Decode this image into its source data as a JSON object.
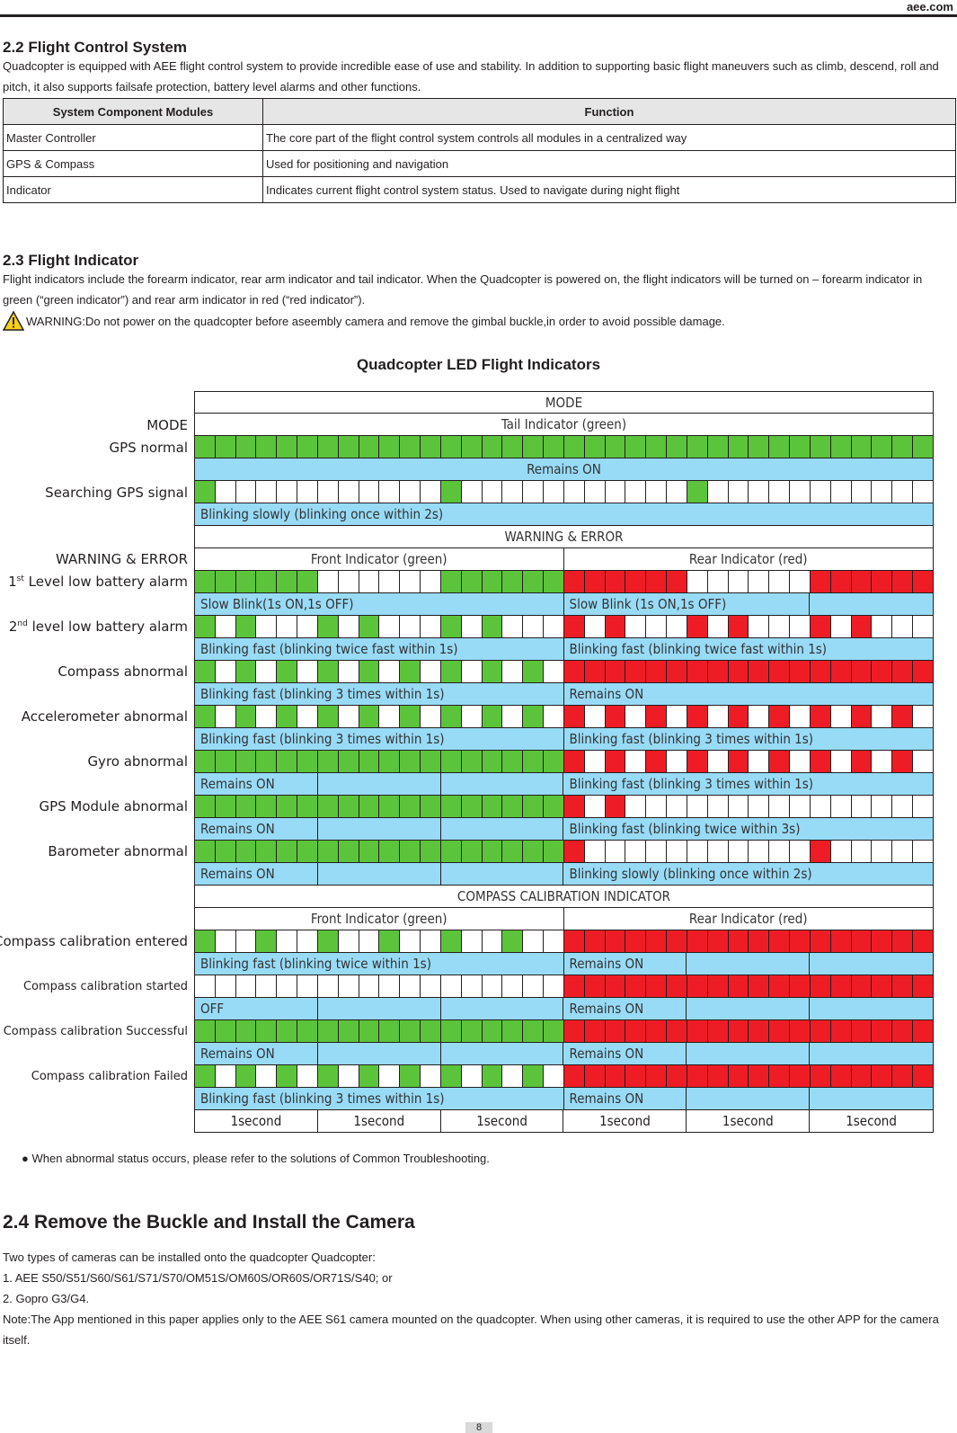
{
  "site": "aee.com",
  "sec22": {
    "title": "2.2  Flight Control System",
    "intro": "Quadcopter is equipped with AEE flight control system to provide incredible ease of use and stability. In addition to supporting basic flight maneuvers such as climb, descend, roll and pitch, it also supports failsafe protection, battery level alarms and other functions.",
    "table": {
      "headers": [
        "System Component Modules",
        "Function"
      ],
      "rows": [
        [
          "Master Controller",
          "The core part of the flight control system controls all modules in a centralized way"
        ],
        [
          "GPS & Compass",
          "Used for positioning and navigation"
        ],
        [
          "Indicator",
          "Indicates current flight control system status. Used to navigate during night flight"
        ]
      ]
    }
  },
  "sec23": {
    "title": "2.3  Flight Indicator",
    "intro": "Flight indicators include the forearm indicator, rear arm indicator and tail indicator. When the Quadcopter is powered on, the flight indicators will be turned on – forearm indicator in green (“green indicator”) and rear arm indicator in red (“red indicator”).",
    "warning": "WARNING:Do not power on the quadcopter before aseembly camera and remove the gimbal buckle,in order to avoid possible damage."
  },
  "chart": {
    "title": "Quadcopter LED Flight Indicators",
    "mode_header": "MODE",
    "tail_header": "Tail Indicator (green)",
    "mode_label": "MODE",
    "gps_normal": "GPS normal",
    "remains_on": "Remains ON",
    "searching_gps": "Searching GPS signal",
    "blink_slow_2s": "Blinking slowly (blinking once within 2s)",
    "warning_header": "WARNING & ERROR",
    "warning_label": "WARNING & ERROR",
    "front_green": "Front Indicator (green)",
    "rear_red": "Rear Indicator (red)",
    "lvl1_sup": "st",
    "lvl1_num": "1",
    "lvl1_text": " Level low battery alarm",
    "slow_blink_front": "Slow Blink(1s ON,1s OFF)",
    "slow_blink_rear": "Slow Blink (1s ON,1s OFF)",
    "lvl2_num": "2",
    "lvl2_sup": "nd",
    "lvl2_text": " level low battery alarm",
    "blink_twice_fast": "Blinking fast (blinking twice fast within 1s)",
    "compass_abnormal": "Compass abnormal",
    "blink_3": "Blinking fast (blinking 3 times within 1s)",
    "accel_abnormal": "Accelerometer abnormal",
    "gyro_abnormal": "Gyro abnormal",
    "gps_module_abnormal": "GPS Module abnormal",
    "blink_twice_3s": "Blinking fast (blinking twice within 3s)",
    "baro_abnormal": "Barometer abnormal",
    "calib_header": "COMPASS CALIBRATION INDICATOR",
    "calib_entered": "Compass calibration entered",
    "blink_twice_1s": "Blinking fast (blinking twice within 1s)",
    "calib_started": "Compass calibration started",
    "off": "OFF",
    "calib_success": "Compass calibration Successful",
    "calib_failed": "Compass calibration Failed",
    "second": "1second",
    "led_colors": {
      "green": "#5bc43a",
      "red": "#ee1c25",
      "blue": "#98dbf7"
    }
  },
  "note": "● When abnormal status occurs, please refer to the solutions of Common Troubleshooting.",
  "sec24": {
    "title": "2.4  Remove the Buckle and Install the Camera",
    "l1": "Two types of cameras can be installed onto the quadcopter Quadcopter:",
    "l2": "1. AEE S50/S51/S60/S61/S71/S70/OM51S/OM60S/OR60S/OR71S/S40; or",
    "l3": "2. Gopro G3/G4.",
    "l4": "Note:The App mentioned in this paper applies only to the AEE S61 camera mounted on the quadcopter. When using other cameras, it is required to use the other APP for the camera itself."
  },
  "page": "8"
}
